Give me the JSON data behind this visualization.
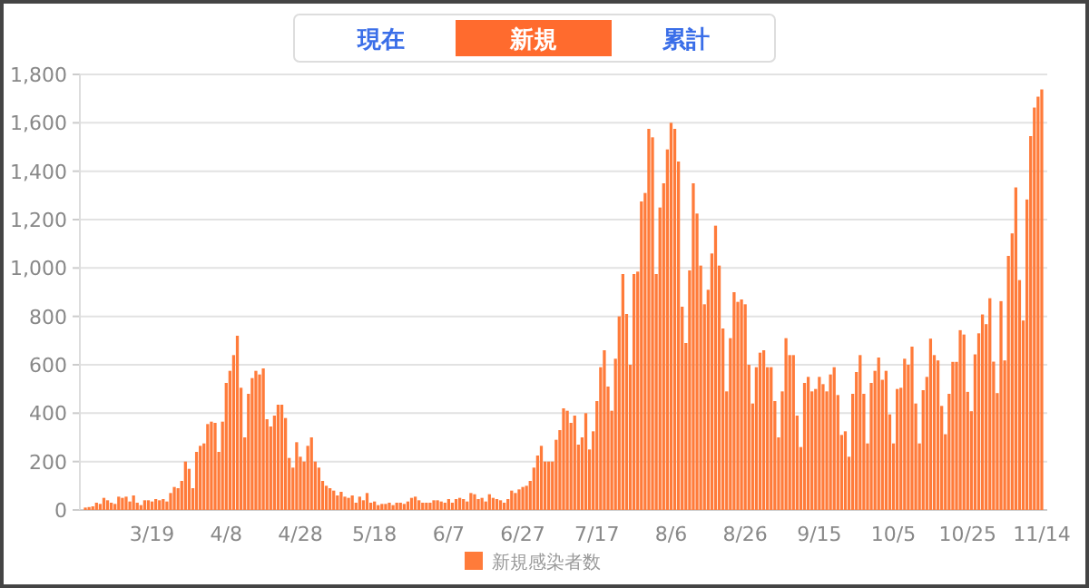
{
  "chart_data": {
    "type": "bar",
    "annotations": [
      "現在",
      "新規",
      "累計"
    ],
    "categories": [
      null,
      null,
      null,
      null,
      null,
      null,
      null,
      null,
      null,
      null,
      null,
      null,
      null,
      null,
      null,
      null,
      null,
      null,
      "3/19",
      null,
      null,
      null,
      null,
      null,
      null,
      null,
      null,
      null,
      null,
      null,
      null,
      null,
      null,
      null,
      null,
      null,
      null,
      null,
      "4/8",
      null,
      null,
      null,
      null,
      null,
      null,
      null,
      null,
      null,
      null,
      null,
      null,
      null,
      null,
      null,
      null,
      null,
      null,
      null,
      "4/28",
      null,
      null,
      null,
      null,
      null,
      null,
      null,
      null,
      null,
      null,
      null,
      null,
      null,
      null,
      null,
      null,
      null,
      null,
      null,
      "5/18",
      null,
      null,
      null,
      null,
      null,
      null,
      null,
      null,
      null,
      null,
      null,
      null,
      null,
      null,
      null,
      null,
      null,
      null,
      null,
      "6/7",
      null,
      null,
      null,
      null,
      null,
      null,
      null,
      null,
      null,
      null,
      null,
      null,
      null,
      null,
      null,
      null,
      null,
      null,
      null,
      "6/27",
      null,
      null,
      null,
      null,
      null,
      null,
      null,
      null,
      null,
      null,
      null,
      null,
      null,
      null,
      null,
      null,
      null,
      null,
      null,
      "7/17",
      null,
      null,
      null,
      null,
      null,
      null,
      null,
      null,
      null,
      null,
      null,
      null,
      null,
      null,
      null,
      null,
      null,
      null,
      null,
      "8/6",
      null,
      null,
      null,
      null,
      null,
      null,
      null,
      null,
      null,
      null,
      null,
      null,
      null,
      null,
      null,
      null,
      null,
      null,
      null,
      "8/26",
      null,
      null,
      null,
      null,
      null,
      null,
      null,
      null,
      null,
      null,
      null,
      null,
      null,
      null,
      null,
      null,
      null,
      null,
      null,
      "9/15",
      null,
      null,
      null,
      null,
      null,
      null,
      null,
      null,
      null,
      null,
      null,
      null,
      null,
      null,
      null,
      null,
      null,
      null,
      null,
      "10/5",
      null,
      null,
      null,
      null,
      null,
      null,
      null,
      null,
      null,
      null,
      null,
      null,
      null,
      null,
      null,
      null,
      null,
      null,
      null,
      "10/25",
      null,
      null,
      null,
      null,
      null,
      null,
      null,
      null,
      null,
      null,
      null,
      null,
      null,
      null,
      null,
      null,
      null,
      null,
      null,
      "11/14"
    ],
    "series": [
      {
        "name": "新規感染者数",
        "color": "#ff7b3a",
        "values": [
          10,
          12,
          15,
          30,
          25,
          50,
          40,
          30,
          25,
          55,
          50,
          55,
          35,
          60,
          30,
          20,
          40,
          40,
          35,
          45,
          40,
          45,
          35,
          70,
          95,
          90,
          120,
          200,
          170,
          90,
          240,
          265,
          275,
          355,
          365,
          360,
          240,
          365,
          525,
          575,
          640,
          720,
          505,
          300,
          480,
          545,
          575,
          560,
          585,
          375,
          345,
          390,
          435,
          435,
          380,
          215,
          175,
          280,
          220,
          200,
          265,
          300,
          200,
          175,
          120,
          100,
          90,
          80,
          60,
          75,
          55,
          50,
          60,
          30,
          55,
          40,
          70,
          30,
          35,
          20,
          25,
          25,
          30,
          20,
          30,
          30,
          25,
          35,
          50,
          55,
          40,
          30,
          30,
          30,
          40,
          40,
          35,
          30,
          45,
          30,
          45,
          50,
          45,
          35,
          70,
          65,
          45,
          50,
          35,
          65,
          50,
          45,
          40,
          30,
          45,
          80,
          70,
          85,
          95,
          100,
          120,
          175,
          225,
          265,
          200,
          200,
          200,
          290,
          330,
          420,
          410,
          360,
          390,
          270,
          300,
          400,
          250,
          325,
          450,
          590,
          660,
          510,
          410,
          625,
          800,
          975,
          810,
          600,
          975,
          985,
          1275,
          1310,
          1575,
          1540,
          975,
          1250,
          1350,
          1490,
          1600,
          1575,
          1440,
          840,
          690,
          990,
          1350,
          1225,
          1010,
          850,
          910,
          1060,
          1175,
          1010,
          750,
          490,
          710,
          900,
          860,
          870,
          850,
          600,
          440,
          590,
          650,
          660,
          590,
          590,
          450,
          300,
          490,
          710,
          640,
          640,
          390,
          260,
          525,
          550,
          490,
          500,
          550,
          520,
          490,
          560,
          590,
          475,
          310,
          325,
          220,
          480,
          570,
          640,
          480,
          275,
          525,
          575,
          630,
          538,
          575,
          395,
          275,
          500,
          505,
          625,
          600,
          675,
          440,
          275,
          495,
          550,
          708,
          640,
          618,
          430,
          313,
          480,
          612,
          612,
          743,
          725,
          488,
          408,
          643,
          730,
          808,
          768,
          875,
          613,
          483,
          863,
          618,
          1050,
          1143,
          1333,
          950,
          783,
          1283,
          1545,
          1663,
          1708,
          1738
        ]
      }
    ],
    "ylim": [
      0,
      1800
    ],
    "yticks": [
      0,
      {
        "value": 200,
        "label": "200"
      },
      {
        "value": 400,
        "label": "400"
      },
      {
        "value": 600,
        "label": "600"
      },
      {
        "value": 800,
        "label": "800"
      },
      {
        "value": 1000,
        "label": "1,000"
      },
      {
        "value": 1200,
        "label": "1,200"
      },
      {
        "value": 1400,
        "label": "1,400"
      },
      {
        "value": 1600,
        "label": "1,600"
      },
      {
        "value": 1800,
        "label": "1,800"
      }
    ],
    "grid": "y",
    "legend": "bottom"
  }
}
